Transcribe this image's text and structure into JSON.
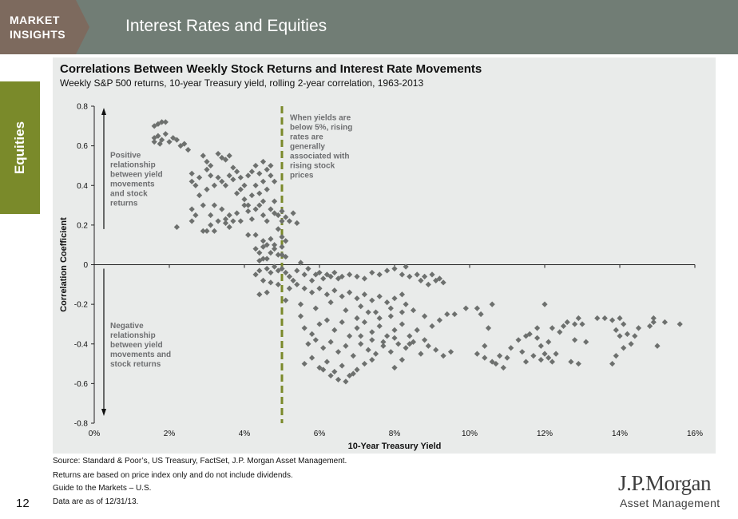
{
  "header": {
    "brand_line1": "MARKET",
    "brand_line2": "INSIGHTS",
    "page_title": "Interest Rates and Equities",
    "colors": {
      "bar": "#717d75",
      "brand_box": "#7d6a5e",
      "accent": "#7a8a2a"
    }
  },
  "side_tab": {
    "label": "Equities",
    "color": "#7a8a2a"
  },
  "chart_data": {
    "type": "scatter",
    "title": "Correlations Between Weekly Stock Returns and Interest Rate Movements",
    "subtitle": "Weekly S&P 500 returns, 10-year Treasury yield, rolling 2-year correlation, 1963-2013",
    "xlabel": "10-Year Treasury Yield",
    "ylabel": "Correlation Coefficient",
    "xlim": [
      0,
      16
    ],
    "ylim": [
      -0.8,
      0.8
    ],
    "x_ticks": [
      0,
      2,
      4,
      6,
      8,
      10,
      12,
      14,
      16
    ],
    "x_tick_labels": [
      "0%",
      "2%",
      "4%",
      "6%",
      "8%",
      "10%",
      "12%",
      "14%",
      "16%"
    ],
    "y_ticks": [
      0.8,
      0.6,
      0.4,
      0.2,
      0,
      -0.2,
      -0.4,
      -0.6,
      -0.8
    ],
    "y_tick_labels": [
      "0.8",
      "0.6",
      "0.4",
      "0.2",
      "0",
      "-0.2",
      "-0.4",
      "-0.6",
      "-0.8"
    ],
    "marker_color": "#6d706e",
    "threshold_line": {
      "x": 5,
      "color": "#7a8a2a",
      "style": "dashed"
    },
    "annotations": {
      "positive": [
        "Positive",
        "relationship",
        "between yield",
        "movements",
        "and stock",
        "returns"
      ],
      "negative": [
        "Negative",
        "relationship",
        "between yield",
        "movements and",
        "stock returns"
      ],
      "threshold": [
        "When yields are",
        "below 5%, rising",
        "rates are",
        "generally",
        "associated with",
        "rising stock",
        "prices"
      ]
    },
    "points": [
      [
        1.6,
        0.7
      ],
      [
        1.7,
        0.71
      ],
      [
        1.8,
        0.72
      ],
      [
        1.9,
        0.72
      ],
      [
        1.6,
        0.64
      ],
      [
        1.7,
        0.65
      ],
      [
        1.8,
        0.63
      ],
      [
        1.9,
        0.66
      ],
      [
        2.0,
        0.62
      ],
      [
        2.2,
        0.63
      ],
      [
        2.3,
        0.6
      ],
      [
        2.5,
        0.58
      ],
      [
        1.6,
        0.62
      ],
      [
        1.75,
        0.61
      ],
      [
        2.1,
        0.64
      ],
      [
        2.4,
        0.61
      ],
      [
        2.2,
        0.19
      ],
      [
        2.6,
        0.46
      ],
      [
        2.7,
        0.4
      ],
      [
        2.8,
        0.35
      ],
      [
        2.9,
        0.3
      ],
      [
        2.6,
        0.42
      ],
      [
        2.8,
        0.44
      ],
      [
        3.0,
        0.48
      ],
      [
        3.0,
        0.38
      ],
      [
        3.1,
        0.45
      ],
      [
        3.2,
        0.4
      ],
      [
        3.2,
        0.3
      ],
      [
        3.3,
        0.44
      ],
      [
        3.4,
        0.42
      ],
      [
        3.5,
        0.4
      ],
      [
        3.6,
        0.45
      ],
      [
        3.7,
        0.43
      ],
      [
        3.8,
        0.47
      ],
      [
        3.9,
        0.44
      ],
      [
        2.9,
        0.55
      ],
      [
        3.0,
        0.52
      ],
      [
        3.1,
        0.5
      ],
      [
        3.3,
        0.56
      ],
      [
        3.4,
        0.54
      ],
      [
        3.5,
        0.53
      ],
      [
        3.6,
        0.55
      ],
      [
        3.7,
        0.49
      ],
      [
        2.6,
        0.22
      ],
      [
        2.6,
        0.28
      ],
      [
        2.7,
        0.25
      ],
      [
        2.9,
        0.17
      ],
      [
        3.0,
        0.17
      ],
      [
        3.1,
        0.2
      ],
      [
        3.1,
        0.25
      ],
      [
        3.2,
        0.17
      ],
      [
        3.3,
        0.22
      ],
      [
        3.4,
        0.28
      ],
      [
        3.5,
        0.23
      ],
      [
        3.6,
        0.25
      ],
      [
        3.7,
        0.22
      ],
      [
        3.8,
        0.26
      ],
      [
        3.9,
        0.22
      ],
      [
        3.5,
        0.21
      ],
      [
        3.6,
        0.19
      ],
      [
        3.8,
        0.36
      ],
      [
        3.9,
        0.38
      ],
      [
        4.0,
        0.4
      ],
      [
        4.0,
        0.33
      ],
      [
        4.1,
        0.45
      ],
      [
        4.1,
        0.3
      ],
      [
        4.2,
        0.47
      ],
      [
        4.2,
        0.35
      ],
      [
        4.3,
        0.5
      ],
      [
        4.3,
        0.4
      ],
      [
        4.4,
        0.46
      ],
      [
        4.4,
        0.36
      ],
      [
        4.5,
        0.52
      ],
      [
        4.5,
        0.42
      ],
      [
        4.6,
        0.48
      ],
      [
        4.6,
        0.38
      ],
      [
        4.7,
        0.45
      ],
      [
        4.7,
        0.5
      ],
      [
        4.8,
        0.42
      ],
      [
        4.8,
        0.32
      ],
      [
        4.0,
        0.3
      ],
      [
        4.1,
        0.27
      ],
      [
        4.2,
        0.23
      ],
      [
        4.3,
        0.28
      ],
      [
        4.4,
        0.3
      ],
      [
        4.5,
        0.25
      ],
      [
        4.5,
        0.32
      ],
      [
        4.6,
        0.22
      ],
      [
        4.7,
        0.28
      ],
      [
        4.8,
        0.26
      ],
      [
        4.9,
        0.25
      ],
      [
        5.0,
        0.22
      ],
      [
        5.1,
        0.24
      ],
      [
        5.2,
        0.22
      ],
      [
        5.3,
        0.26
      ],
      [
        5.4,
        0.21
      ],
      [
        4.1,
        0.15
      ],
      [
        4.3,
        0.15
      ],
      [
        4.5,
        0.12
      ],
      [
        4.7,
        0.13
      ],
      [
        5.0,
        0.14
      ],
      [
        5.1,
        0.12
      ],
      [
        4.9,
        0.18
      ],
      [
        5.0,
        0.27
      ],
      [
        4.3,
        0.08
      ],
      [
        4.4,
        0.06
      ],
      [
        4.5,
        0.09
      ],
      [
        4.6,
        0.03
      ],
      [
        4.7,
        0.06
      ],
      [
        4.8,
        0.08
      ],
      [
        4.9,
        0.05
      ],
      [
        5.0,
        0.05
      ],
      [
        4.8,
        0.1
      ],
      [
        4.6,
        0.1
      ],
      [
        4.5,
        0.03
      ],
      [
        4.4,
        0.02
      ],
      [
        5.1,
        0.04
      ],
      [
        5.0,
        0.09
      ],
      [
        4.3,
        -0.05
      ],
      [
        4.4,
        -0.03
      ],
      [
        4.6,
        -0.02
      ],
      [
        4.7,
        -0.04
      ],
      [
        4.8,
        -0.01
      ],
      [
        4.9,
        -0.03
      ],
      [
        4.5,
        -0.08
      ],
      [
        4.7,
        -0.09
      ],
      [
        4.9,
        -0.1
      ],
      [
        4.6,
        -0.14
      ],
      [
        4.4,
        -0.15
      ],
      [
        5.0,
        -0.02
      ],
      [
        5.1,
        -0.04
      ],
      [
        5.1,
        -0.18
      ],
      [
        5.2,
        -0.06
      ],
      [
        5.3,
        -0.08
      ],
      [
        5.4,
        -0.03
      ],
      [
        5.5,
        0.01
      ],
      [
        5.6,
        -0.05
      ],
      [
        5.7,
        -0.02
      ],
      [
        5.8,
        -0.08
      ],
      [
        5.9,
        -0.05
      ],
      [
        6.0,
        -0.04
      ],
      [
        6.1,
        -0.07
      ],
      [
        6.2,
        -0.05
      ],
      [
        6.3,
        -0.06
      ],
      [
        6.4,
        -0.04
      ],
      [
        6.5,
        -0.07
      ],
      [
        6.6,
        -0.06
      ],
      [
        6.8,
        -0.05
      ],
      [
        7.0,
        -0.06
      ],
      [
        7.2,
        -0.07
      ],
      [
        7.4,
        -0.04
      ],
      [
        7.6,
        -0.05
      ],
      [
        7.8,
        -0.03
      ],
      [
        8.0,
        -0.02
      ],
      [
        8.2,
        -0.05
      ],
      [
        8.3,
        -0.01
      ],
      [
        8.4,
        -0.06
      ],
      [
        5.2,
        -0.12
      ],
      [
        5.4,
        -0.1
      ],
      [
        5.6,
        -0.12
      ],
      [
        5.8,
        -0.14
      ],
      [
        6.0,
        -0.12
      ],
      [
        6.2,
        -0.15
      ],
      [
        6.4,
        -0.13
      ],
      [
        6.6,
        -0.16
      ],
      [
        6.8,
        -0.14
      ],
      [
        7.0,
        -0.17
      ],
      [
        7.2,
        -0.15
      ],
      [
        7.4,
        -0.18
      ],
      [
        7.6,
        -0.16
      ],
      [
        7.8,
        -0.19
      ],
      [
        8.0,
        -0.17
      ],
      [
        8.2,
        -0.15
      ],
      [
        5.5,
        -0.2
      ],
      [
        5.9,
        -0.22
      ],
      [
        6.3,
        -0.19
      ],
      [
        6.7,
        -0.23
      ],
      [
        7.1,
        -0.21
      ],
      [
        7.5,
        -0.24
      ],
      [
        7.9,
        -0.22
      ],
      [
        8.3,
        -0.2
      ],
      [
        8.6,
        -0.05
      ],
      [
        8.8,
        -0.06
      ],
      [
        9.0,
        -0.05
      ],
      [
        9.2,
        -0.07
      ],
      [
        9.3,
        -0.09
      ],
      [
        8.7,
        -0.08
      ],
      [
        8.9,
        -0.1
      ],
      [
        9.1,
        -0.08
      ],
      [
        5.5,
        -0.26
      ],
      [
        5.6,
        -0.32
      ],
      [
        5.8,
        -0.35
      ],
      [
        6.0,
        -0.3
      ],
      [
        6.2,
        -0.28
      ],
      [
        6.4,
        -0.33
      ],
      [
        6.6,
        -0.29
      ],
      [
        6.8,
        -0.36
      ],
      [
        7.0,
        -0.32
      ],
      [
        7.2,
        -0.29
      ],
      [
        7.4,
        -0.34
      ],
      [
        7.6,
        -0.31
      ],
      [
        7.8,
        -0.36
      ],
      [
        8.0,
        -0.33
      ],
      [
        8.2,
        -0.3
      ],
      [
        8.4,
        -0.36
      ],
      [
        8.6,
        -0.33
      ],
      [
        8.8,
        -0.38
      ],
      [
        9.0,
        -0.31
      ],
      [
        9.2,
        -0.28
      ],
      [
        9.4,
        -0.25
      ],
      [
        5.7,
        -0.4
      ],
      [
        5.9,
        -0.38
      ],
      [
        6.1,
        -0.42
      ],
      [
        6.3,
        -0.39
      ],
      [
        6.5,
        -0.44
      ],
      [
        6.7,
        -0.41
      ],
      [
        6.9,
        -0.46
      ],
      [
        7.1,
        -0.4
      ],
      [
        7.3,
        -0.43
      ],
      [
        7.5,
        -0.45
      ],
      [
        7.7,
        -0.41
      ],
      [
        7.9,
        -0.44
      ],
      [
        8.1,
        -0.4
      ],
      [
        8.3,
        -0.42
      ],
      [
        8.5,
        -0.39
      ],
      [
        8.7,
        -0.45
      ],
      [
        8.9,
        -0.41
      ],
      [
        9.1,
        -0.43
      ],
      [
        9.3,
        -0.46
      ],
      [
        9.5,
        -0.44
      ],
      [
        5.6,
        -0.5
      ],
      [
        5.8,
        -0.47
      ],
      [
        6.0,
        -0.52
      ],
      [
        6.2,
        -0.49
      ],
      [
        6.4,
        -0.54
      ],
      [
        6.6,
        -0.51
      ],
      [
        6.8,
        -0.56
      ],
      [
        7.0,
        -0.53
      ],
      [
        7.2,
        -0.5
      ],
      [
        7.4,
        -0.48
      ],
      [
        6.5,
        -0.58
      ],
      [
        6.3,
        -0.56
      ],
      [
        6.1,
        -0.53
      ],
      [
        6.7,
        -0.59
      ],
      [
        6.9,
        -0.55
      ],
      [
        8.0,
        -0.52
      ],
      [
        8.2,
        -0.48
      ],
      [
        7.0,
        -0.27
      ],
      [
        7.3,
        -0.24
      ],
      [
        7.6,
        -0.27
      ],
      [
        7.9,
        -0.26
      ],
      [
        8.2,
        -0.24
      ],
      [
        8.5,
        -0.23
      ],
      [
        8.8,
        -0.26
      ],
      [
        7.1,
        -0.36
      ],
      [
        7.4,
        -0.38
      ],
      [
        7.7,
        -0.39
      ],
      [
        8.0,
        -0.37
      ],
      [
        8.4,
        -0.4
      ],
      [
        9.6,
        -0.25
      ],
      [
        9.9,
        -0.22
      ],
      [
        10.2,
        -0.22
      ],
      [
        10.3,
        -0.25
      ],
      [
        10.5,
        -0.32
      ],
      [
        10.4,
        -0.41
      ],
      [
        10.2,
        -0.45
      ],
      [
        10.4,
        -0.47
      ],
      [
        10.6,
        -0.49
      ],
      [
        10.8,
        -0.46
      ],
      [
        10.7,
        -0.5
      ],
      [
        10.9,
        -0.52
      ],
      [
        11.0,
        -0.47
      ],
      [
        10.6,
        -0.2
      ],
      [
        11.1,
        -0.42
      ],
      [
        11.4,
        -0.44
      ],
      [
        11.3,
        -0.38
      ],
      [
        11.5,
        -0.36
      ],
      [
        11.6,
        -0.35
      ],
      [
        11.8,
        -0.37
      ],
      [
        11.9,
        -0.41
      ],
      [
        12.0,
        -0.45
      ],
      [
        12.1,
        -0.47
      ],
      [
        12.2,
        -0.49
      ],
      [
        11.9,
        -0.48
      ],
      [
        11.7,
        -0.46
      ],
      [
        12.3,
        -0.45
      ],
      [
        11.5,
        -0.49
      ],
      [
        11.8,
        -0.32
      ],
      [
        12.0,
        -0.2
      ],
      [
        12.1,
        -0.39
      ],
      [
        12.4,
        -0.34
      ],
      [
        12.5,
        -0.31
      ],
      [
        12.6,
        -0.29
      ],
      [
        12.8,
        -0.3
      ],
      [
        12.9,
        -0.27
      ],
      [
        13.0,
        -0.3
      ],
      [
        12.7,
        -0.49
      ],
      [
        12.9,
        -0.5
      ],
      [
        12.8,
        -0.38
      ],
      [
        13.1,
        -0.39
      ],
      [
        12.2,
        -0.32
      ],
      [
        13.4,
        -0.27
      ],
      [
        13.6,
        -0.27
      ],
      [
        13.8,
        -0.28
      ],
      [
        14.0,
        -0.27
      ],
      [
        14.1,
        -0.3
      ],
      [
        13.9,
        -0.33
      ],
      [
        14.0,
        -0.36
      ],
      [
        14.2,
        -0.35
      ],
      [
        14.3,
        -0.4
      ],
      [
        14.1,
        -0.42
      ],
      [
        13.9,
        -0.46
      ],
      [
        13.8,
        -0.5
      ],
      [
        14.5,
        -0.32
      ],
      [
        14.4,
        -0.36
      ],
      [
        14.8,
        -0.31
      ],
      [
        14.9,
        -0.29
      ],
      [
        14.9,
        -0.27
      ],
      [
        15.2,
        -0.29
      ],
      [
        15.6,
        -0.3
      ],
      [
        15.0,
        -0.41
      ]
    ]
  },
  "footer": {
    "source": "Source: Standard & Poor’s, US Treasury, FactSet, J.P. Morgan Asset Management.",
    "note1": "Returns are based on price index only and do not include dividends.",
    "note2": "Guide to the Markets – U.S.",
    "note3": "Data are as of 12/31/13.",
    "page_number": "12"
  },
  "logo": {
    "line1": "J.P.Morgan",
    "line2": "Asset Management"
  }
}
